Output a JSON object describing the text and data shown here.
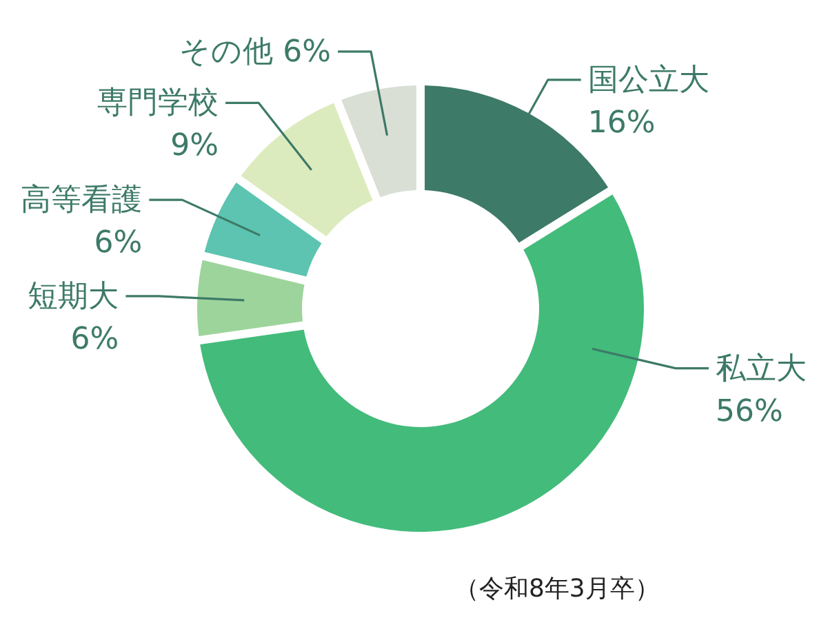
{
  "chart_data": {
    "type": "donut",
    "categories": [
      "国公立大",
      "私立大",
      "短期大",
      "高等看護",
      "専門学校",
      "その他"
    ],
    "values": [
      16,
      56,
      6,
      6,
      9,
      6
    ],
    "value_labels": [
      "16%",
      "56%",
      "6%",
      "6%",
      "9%",
      "6%"
    ],
    "colors": [
      "#3d7a68",
      "#43bb7b",
      "#9dd49b",
      "#5cc4b0",
      "#dcebbd",
      "#dadfd5"
    ],
    "annotations": [
      "（令和8年3月卒）"
    ]
  }
}
